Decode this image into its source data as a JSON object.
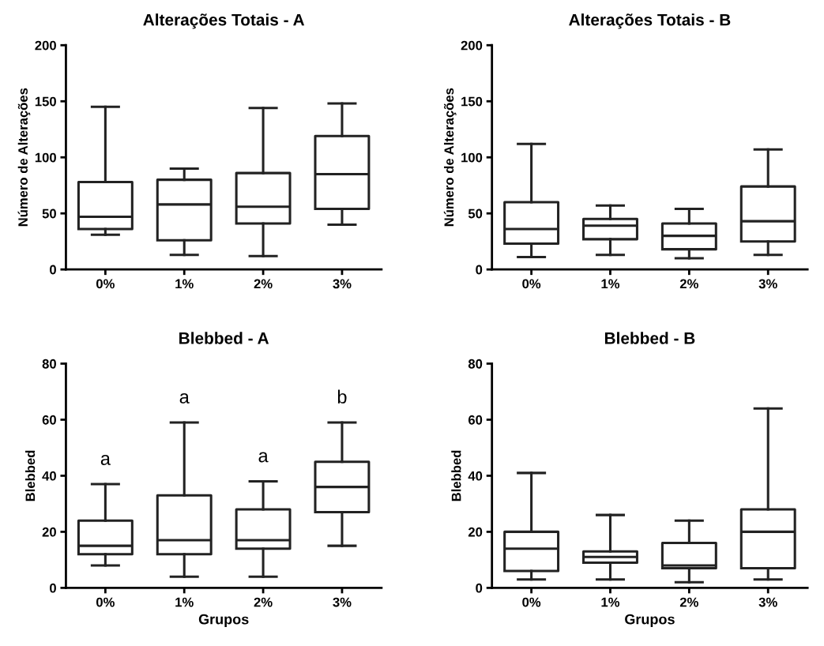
{
  "chart_data": [
    {
      "type": "box",
      "title": "Alterações Totais - A",
      "ylabel": "Número de Alterações",
      "categories": [
        "0%",
        "1%",
        "2%",
        "3%"
      ],
      "ylim": [
        0,
        200
      ],
      "yticks": [
        0,
        50,
        100,
        150,
        200
      ],
      "boxes": [
        {
          "low": 31,
          "q1": 36,
          "median": 47,
          "q3": 78,
          "high": 145
        },
        {
          "low": 13,
          "q1": 26,
          "median": 58,
          "q3": 80,
          "high": 90
        },
        {
          "low": 12,
          "q1": 41,
          "median": 56,
          "q3": 86,
          "high": 144
        },
        {
          "low": 40,
          "q1": 54,
          "median": 85,
          "q3": 119,
          "high": 148
        }
      ]
    },
    {
      "type": "box",
      "title": "Alterações Totais - B",
      "ylabel": "Número de Alterações",
      "categories": [
        "0%",
        "1%",
        "2%",
        "3%"
      ],
      "ylim": [
        0,
        200
      ],
      "yticks": [
        0,
        50,
        100,
        150,
        200
      ],
      "boxes": [
        {
          "low": 11,
          "q1": 23,
          "median": 36,
          "q3": 60,
          "high": 112
        },
        {
          "low": 13,
          "q1": 27,
          "median": 39,
          "q3": 45,
          "high": 57
        },
        {
          "low": 10,
          "q1": 18,
          "median": 30,
          "q3": 41,
          "high": 54
        },
        {
          "low": 13,
          "q1": 25,
          "median": 43,
          "q3": 74,
          "high": 107
        }
      ]
    },
    {
      "type": "box",
      "title": "Blebbed - A",
      "xlabel": "Grupos",
      "ylabel": "Blebbed",
      "categories": [
        "0%",
        "1%",
        "2%",
        "3%"
      ],
      "ylim": [
        0,
        80
      ],
      "yticks": [
        0,
        20,
        40,
        60,
        80
      ],
      "boxes": [
        {
          "low": 8,
          "q1": 12,
          "median": 15,
          "q3": 24,
          "high": 37
        },
        {
          "low": 4,
          "q1": 12,
          "median": 17,
          "q3": 33,
          "high": 59
        },
        {
          "low": 4,
          "q1": 14,
          "median": 17,
          "q3": 28,
          "high": 38
        },
        {
          "low": 15,
          "q1": 27,
          "median": 36,
          "q3": 45,
          "high": 59
        }
      ],
      "annotations": [
        "a",
        "a",
        "a",
        "b"
      ]
    },
    {
      "type": "box",
      "title": "Blebbed - B",
      "xlabel": "Grupos",
      "ylabel": "Blebbed",
      "categories": [
        "0%",
        "1%",
        "2%",
        "3%"
      ],
      "ylim": [
        0,
        80
      ],
      "yticks": [
        0,
        20,
        40,
        60,
        80
      ],
      "boxes": [
        {
          "low": 3,
          "q1": 6,
          "median": 14,
          "q3": 20,
          "high": 41
        },
        {
          "low": 3,
          "q1": 9,
          "median": 11,
          "q3": 13,
          "high": 26
        },
        {
          "low": 2,
          "q1": 7,
          "median": 8,
          "q3": 16,
          "high": 24
        },
        {
          "low": 3,
          "q1": 7,
          "median": 20,
          "q3": 28,
          "high": 64
        }
      ]
    }
  ]
}
